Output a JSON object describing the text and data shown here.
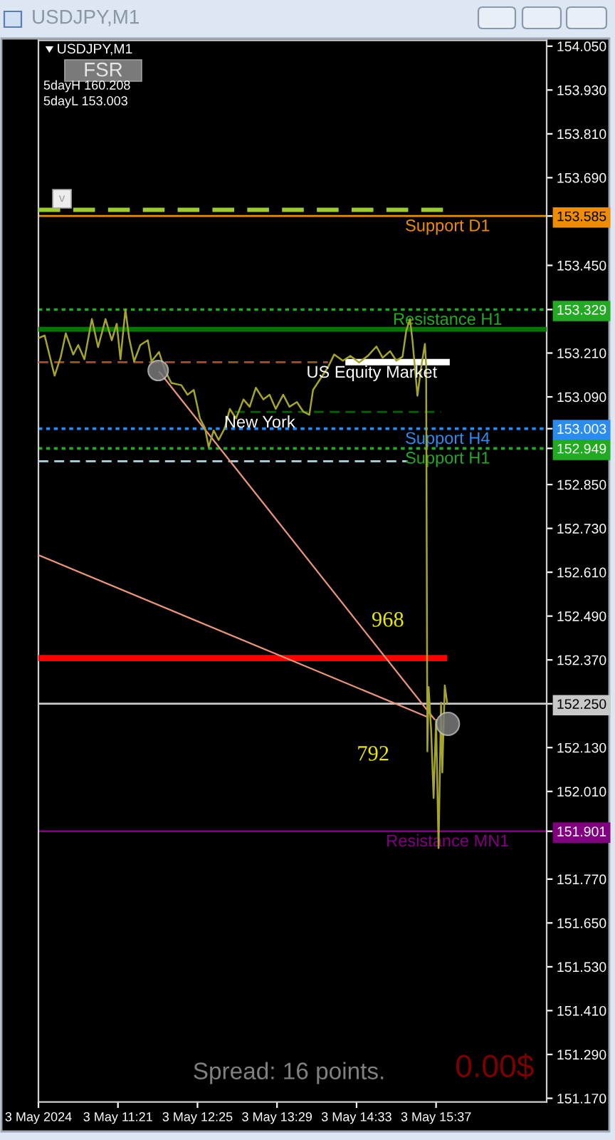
{
  "chart_data": {
    "type": "line",
    "title": "USDJPY,M1",
    "subtitle": "USDJPY,M1",
    "xlim": [
      "2024-05-03T10:17",
      "2024-05-03T17:06"
    ],
    "xticks": [
      {
        "value": "2024-05-03T10:17",
        "label": "3 May 2024"
      },
      {
        "value": "2024-05-03T11:21",
        "label": "3 May 11:21"
      },
      {
        "value": "2024-05-03T12:25",
        "label": "3 May 12:25"
      },
      {
        "value": "2024-05-03T13:29",
        "label": "3 May 13:29"
      },
      {
        "value": "2024-05-03T14:33",
        "label": "3 May 14:33"
      },
      {
        "value": "2024-05-03T15:37",
        "label": "3 May 15:37"
      }
    ],
    "ylim": [
      151.16,
      154.066
    ],
    "yticks": [
      {
        "value": 154.05,
        "label": "154.050"
      },
      {
        "value": 153.93,
        "label": "153.930"
      },
      {
        "value": 153.81,
        "label": "153.810"
      },
      {
        "value": 153.69,
        "label": "153.690"
      },
      153.585,
      {
        "value": 153.45,
        "label": "153.450"
      },
      153.329,
      {
        "value": 153.21,
        "label": "153.210"
      },
      {
        "value": 153.09,
        "label": "153.090"
      },
      153.003,
      152.949,
      {
        "value": 152.85,
        "label": "152.850"
      },
      {
        "value": 152.73,
        "label": "152.730"
      },
      {
        "value": 152.61,
        "label": "152.610"
      },
      {
        "value": 152.49,
        "label": "152.490"
      },
      {
        "value": 152.37,
        "label": "152.370"
      },
      {
        "value": 152.25,
        "label": "152.250"
      },
      {
        "value": 152.13,
        "label": "152.130"
      },
      {
        "value": 152.01,
        "label": "152.010"
      },
      151.901,
      {
        "value": 151.77,
        "label": "151.770"
      },
      {
        "value": 151.65,
        "label": "151.650"
      },
      {
        "value": 151.53,
        "label": "151.530"
      },
      {
        "value": 151.41,
        "label": "151.410"
      },
      {
        "value": 151.29,
        "label": "151.290"
      },
      {
        "value": 151.17,
        "label": "151.170"
      }
    ],
    "series": [
      {
        "color": "#a5a52a",
        "x": [
          "2024-05-03T10:17",
          "2024-05-03T10:22",
          "2024-05-03T10:30",
          "2024-05-03T10:35",
          "2024-05-03T10:39",
          "2024-05-03T10:45",
          "2024-05-03T10:49",
          "2024-05-03T10:54",
          "2024-05-03T11:00",
          "2024-05-03T11:05",
          "2024-05-03T11:11",
          "2024-05-03T11:16",
          "2024-05-03T11:20",
          "2024-05-03T11:23",
          "2024-05-03T11:27",
          "2024-05-03T11:30",
          "2024-05-03T11:34",
          "2024-05-03T11:39",
          "2024-05-03T11:45",
          "2024-05-03T11:48",
          "2024-05-03T11:54",
          "2024-05-03T11:59",
          "2024-05-03T12:04",
          "2024-05-03T12:12",
          "2024-05-03T12:17",
          "2024-05-03T12:22",
          "2024-05-03T12:27",
          "2024-05-03T12:31",
          "2024-05-03T12:34",
          "2024-05-03T12:38",
          "2024-05-03T12:42",
          "2024-05-03T12:47",
          "2024-05-03T12:51",
          "2024-05-03T12:56",
          "2024-05-03T13:02",
          "2024-05-03T13:07",
          "2024-05-03T13:12",
          "2024-05-03T13:18",
          "2024-05-03T13:23",
          "2024-05-03T13:28",
          "2024-05-03T13:34",
          "2024-05-03T13:39",
          "2024-05-03T13:45",
          "2024-05-03T13:50",
          "2024-05-03T13:55",
          "2024-05-03T13:58",
          "2024-05-03T14:03",
          "2024-05-03T14:10",
          "2024-05-03T14:15",
          "2024-05-03T14:22",
          "2024-05-03T14:28",
          "2024-05-03T14:35",
          "2024-05-03T14:42",
          "2024-05-03T14:49",
          "2024-05-03T14:54",
          "2024-05-03T15:00",
          "2024-05-03T15:05",
          "2024-05-03T15:10",
          "2024-05-03T15:13",
          "2024-05-03T15:16",
          "2024-05-03T15:18",
          "2024-05-03T15:22",
          "2024-05-03T15:25",
          "2024-05-03T15:28",
          "2024-05-03T15:29",
          "2024-05-03T15:30",
          "2024-05-03T15:31",
          "2024-05-03T15:33",
          "2024-05-03T15:35",
          "2024-05-03T15:37",
          "2024-05-03T15:39",
          "2024-05-03T15:41",
          "2024-05-03T15:42",
          "2024-05-03T15:44",
          "2024-05-03T15:46"
        ],
        "values": [
          153.251,
          153.258,
          153.148,
          153.2,
          153.264,
          153.206,
          153.232,
          153.193,
          153.303,
          153.226,
          153.303,
          153.245,
          153.29,
          153.193,
          153.329,
          153.251,
          153.187,
          153.232,
          153.245,
          153.187,
          153.213,
          153.161,
          153.128,
          153.122,
          153.096,
          153.109,
          153.031,
          153.005,
          152.953,
          152.998,
          152.972,
          153.005,
          153.057,
          153.031,
          153.083,
          153.063,
          153.115,
          153.083,
          153.096,
          153.057,
          153.096,
          153.063,
          153.076,
          153.05,
          153.041,
          153.109,
          153.135,
          153.171,
          153.206,
          153.189,
          153.202,
          153.184,
          153.202,
          153.228,
          153.197,
          153.215,
          153.189,
          153.2,
          153.271,
          153.303,
          153.245,
          153.093,
          153.171,
          153.235,
          153.176,
          152.12,
          152.296,
          152.179,
          151.992,
          152.206,
          151.855,
          152.253,
          152.062,
          152.3,
          152.25
        ]
      },
      {
        "type": "line",
        "color": "#9acd32",
        "line_style": "dashed",
        "x": [
          "2024-05-03T10:17",
          "2024-05-03T15:46"
        ],
        "values": [
          153.602,
          153.602
        ]
      },
      {
        "type": "line",
        "color": "#007800",
        "line_style": "solid",
        "x": [
          "2024-05-03T10:17",
          "2024-05-03T17:06"
        ],
        "values": [
          153.275,
          153.275
        ]
      },
      {
        "type": "line",
        "color": "#a0522d",
        "line_style": "dashed",
        "x": [
          "2024-05-03T10:17",
          "2024-05-03T14:10"
        ],
        "values": [
          153.185,
          153.185
        ]
      },
      {
        "type": "line",
        "color": "#ffffff",
        "line_style": "solid",
        "x": [
          "2024-05-03T14:24",
          "2024-05-03T15:48"
        ],
        "values": [
          153.185,
          153.185
        ]
      },
      {
        "type": "line",
        "color": "#006400",
        "line_style": "dashed",
        "x": [
          "2024-05-03T12:55",
          "2024-05-03T15:41"
        ],
        "values": [
          153.049,
          153.049
        ]
      },
      {
        "type": "line",
        "color": "#add8e6",
        "line_style": "dashed",
        "x": [
          "2024-05-03T10:17",
          "2024-05-03T15:14"
        ],
        "values": [
          152.914,
          152.914
        ]
      },
      {
        "type": "line",
        "color": "#ff0000",
        "line_style": "solid",
        "x": [
          "2024-05-03T10:17",
          "2024-05-03T15:46"
        ],
        "values": [
          152.375,
          152.375
        ]
      },
      {
        "type": "line",
        "color": "#e9967a",
        "line_style": "solid",
        "x": [
          "2024-05-03T10:17",
          "2024-05-03T15:30"
        ],
        "values": [
          152.657,
          152.214
        ]
      },
      {
        "type": "line",
        "color": "#e9967a",
        "line_style": "solid",
        "x": [
          "2024-05-03T11:54",
          "2024-05-03T15:36"
        ],
        "values": [
          153.16,
          152.206
        ]
      }
    ],
    "ref_lines": [
      {
        "axis": "y",
        "value": 153.585,
        "label": "Support D1",
        "color": "#f08c00",
        "line_style": "solid"
      },
      {
        "axis": "y",
        "value": 153.329,
        "label": "Resistance H1",
        "color": "#22aa22",
        "line_style": "dotted"
      },
      {
        "axis": "y",
        "value": 153.003,
        "label": "Support H4",
        "color": "#2a8cf0",
        "line_style": "dotted"
      },
      {
        "axis": "y",
        "value": 152.949,
        "label": "Support H1",
        "color": "#22aa22",
        "line_style": "dotted"
      },
      {
        "axis": "y",
        "value": 152.25,
        "color": "#c8c8c8",
        "line_style": "solid"
      },
      {
        "axis": "y",
        "value": 151.901,
        "label": "Resistance MN1",
        "color": "#800080",
        "line_style": "solid"
      }
    ],
    "annotations": [
      "FSR",
      "5dayH 160.208",
      "5dayL 153.003",
      "v",
      "US Equity Market",
      "New York",
      "968",
      "792",
      "Spread: 16 points.",
      "0.00$"
    ]
  }
}
